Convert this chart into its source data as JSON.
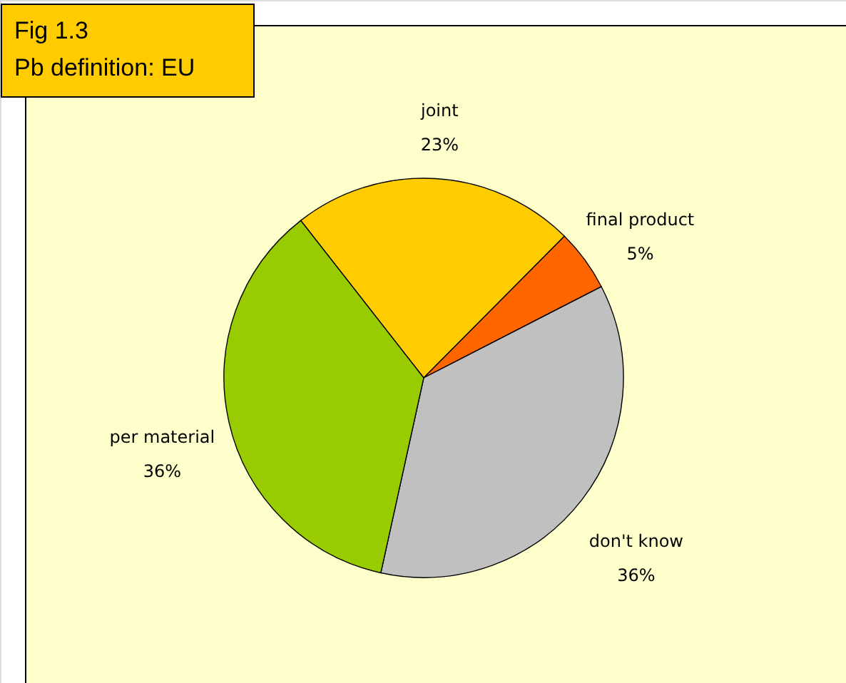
{
  "chart_data": {
    "type": "pie",
    "title": "Fig 1.3",
    "subtitle": "Pb definition: EU",
    "categories": [
      "joint",
      "final product",
      "don't know",
      "per material"
    ],
    "values": [
      23,
      5,
      36,
      36
    ],
    "value_labels": [
      "23%",
      "5%",
      "36%",
      "36%"
    ],
    "colors": [
      "#ffcc00",
      "#ff6600",
      "#c0c0c0",
      "#99cc00"
    ]
  }
}
